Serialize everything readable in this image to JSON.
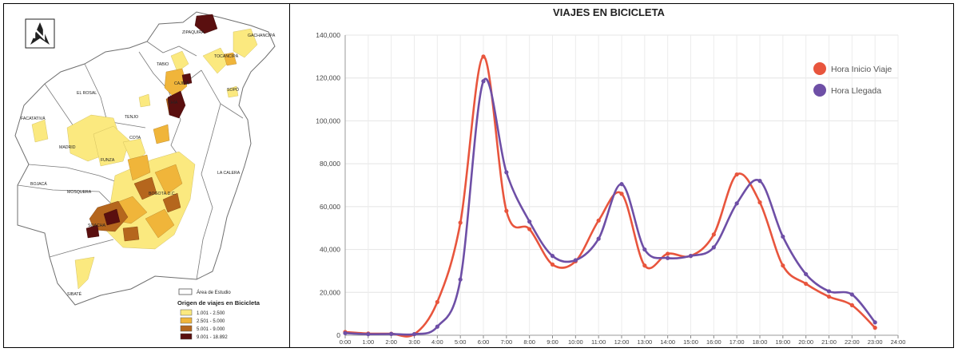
{
  "map": {
    "places": [
      "ZIPAQUIRÁ",
      "GACHANCIPÁ",
      "TOCANCIPÁ",
      "TABIO",
      "CAJICÁ",
      "CHÍA",
      "SOPÓ",
      "EL ROSAL",
      "TENJO",
      "FACATATIVÁ",
      "MADRID",
      "COTA",
      "FUNZA",
      "LA CALERA",
      "BOJACÁ",
      "MOSQUERA",
      "BOGOTÁ D.C.",
      "SOACHA",
      "SIBATÉ"
    ],
    "legend": {
      "area_label": "Área de Estudio",
      "title": "Origen de viajes en Bicicleta",
      "classes": [
        {
          "label": "1.001 - 2.500",
          "color": "#fbe97f"
        },
        {
          "label": "2.501 - 5.000",
          "color": "#f0b53a"
        },
        {
          "label": "5.001 - 9.000",
          "color": "#b5661d"
        },
        {
          "label": "9.001 - 18.892",
          "color": "#5a0f0f"
        }
      ]
    }
  },
  "chart_data": {
    "type": "line",
    "title": "VIAJES EN BICICLETA",
    "x": [
      "0:00",
      "1:00",
      "2:00",
      "3:00",
      "4:00",
      "5:00",
      "6:00",
      "7:00",
      "8:00",
      "9:00",
      "10:00",
      "11:00",
      "12:00",
      "13:00",
      "14:00",
      "15:00",
      "16:00",
      "17:00",
      "18:00",
      "19:00",
      "20:00",
      "21:00",
      "22:00",
      "23:00"
    ],
    "x_ticks": [
      "0:00",
      "1:00",
      "2:00",
      "3:00",
      "4:00",
      "5:00",
      "6:00",
      "7:00",
      "8:00",
      "9:00",
      "10:00",
      "11:00",
      "12:00",
      "13:00",
      "14:00",
      "15:00",
      "16:00",
      "17:00",
      "18:00",
      "19:00",
      "20:00",
      "21:00",
      "22:00",
      "23:00",
      "24:00"
    ],
    "y_ticks": [
      "0",
      "20,000",
      "40,000",
      "60,000",
      "80,000",
      "100,000",
      "120,000",
      "140,000"
    ],
    "ylim": [
      0,
      140000
    ],
    "xlim": [
      0,
      24
    ],
    "grid": true,
    "legend_position": "top-right",
    "series": [
      {
        "name": "Hora Inicio Viaje",
        "color": "#e8553d",
        "values": [
          1500,
          800,
          700,
          500,
          15500,
          52500,
          130000,
          58000,
          49500,
          33000,
          34500,
          53500,
          66000,
          32500,
          38000,
          37000,
          47000,
          75000,
          62000,
          32500,
          24000,
          18000,
          14000,
          3500
        ]
      },
      {
        "name": "Hora Llegada",
        "color": "#6e4fa6",
        "values": [
          1000,
          500,
          600,
          500,
          4000,
          26000,
          118500,
          76000,
          53000,
          37000,
          35000,
          45000,
          70500,
          40000,
          36000,
          37000,
          41000,
          61500,
          72000,
          46000,
          28500,
          20500,
          19000,
          6000
        ]
      }
    ]
  }
}
